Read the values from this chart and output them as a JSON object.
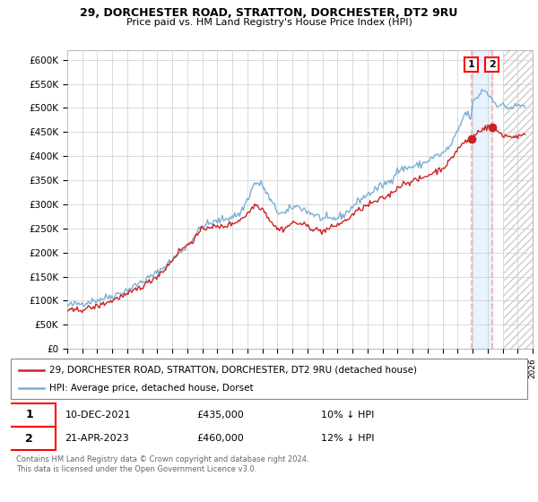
{
  "title1": "29, DORCHESTER ROAD, STRATTON, DORCHESTER, DT2 9RU",
  "title2": "Price paid vs. HM Land Registry's House Price Index (HPI)",
  "ylim": [
    0,
    620000
  ],
  "yticks": [
    0,
    50000,
    100000,
    150000,
    200000,
    250000,
    300000,
    350000,
    400000,
    450000,
    500000,
    550000,
    600000
  ],
  "ytick_labels": [
    "£0",
    "£50K",
    "£100K",
    "£150K",
    "£200K",
    "£250K",
    "£300K",
    "£350K",
    "£400K",
    "£450K",
    "£500K",
    "£550K",
    "£600K"
  ],
  "hpi_color": "#7bafd4",
  "price_color": "#cc2222",
  "legend1": "29, DORCHESTER ROAD, STRATTON, DORCHESTER, DT2 9RU (detached house)",
  "legend2": "HPI: Average price, detached house, Dorset",
  "annotation1_label": "1",
  "annotation1_date": "10-DEC-2021",
  "annotation1_price": "£435,000",
  "annotation1_hpi": "10% ↓ HPI",
  "annotation2_label": "2",
  "annotation2_date": "21-APR-2023",
  "annotation2_price": "£460,000",
  "annotation2_hpi": "12% ↓ HPI",
  "footer": "Contains HM Land Registry data © Crown copyright and database right 2024.\nThis data is licensed under the Open Government Licence v3.0.",
  "sale1_x": 2021.92,
  "sale1_y": 435000,
  "sale2_x": 2023.29,
  "sale2_y": 460000,
  "xmin": 1995,
  "xmax": 2026
}
